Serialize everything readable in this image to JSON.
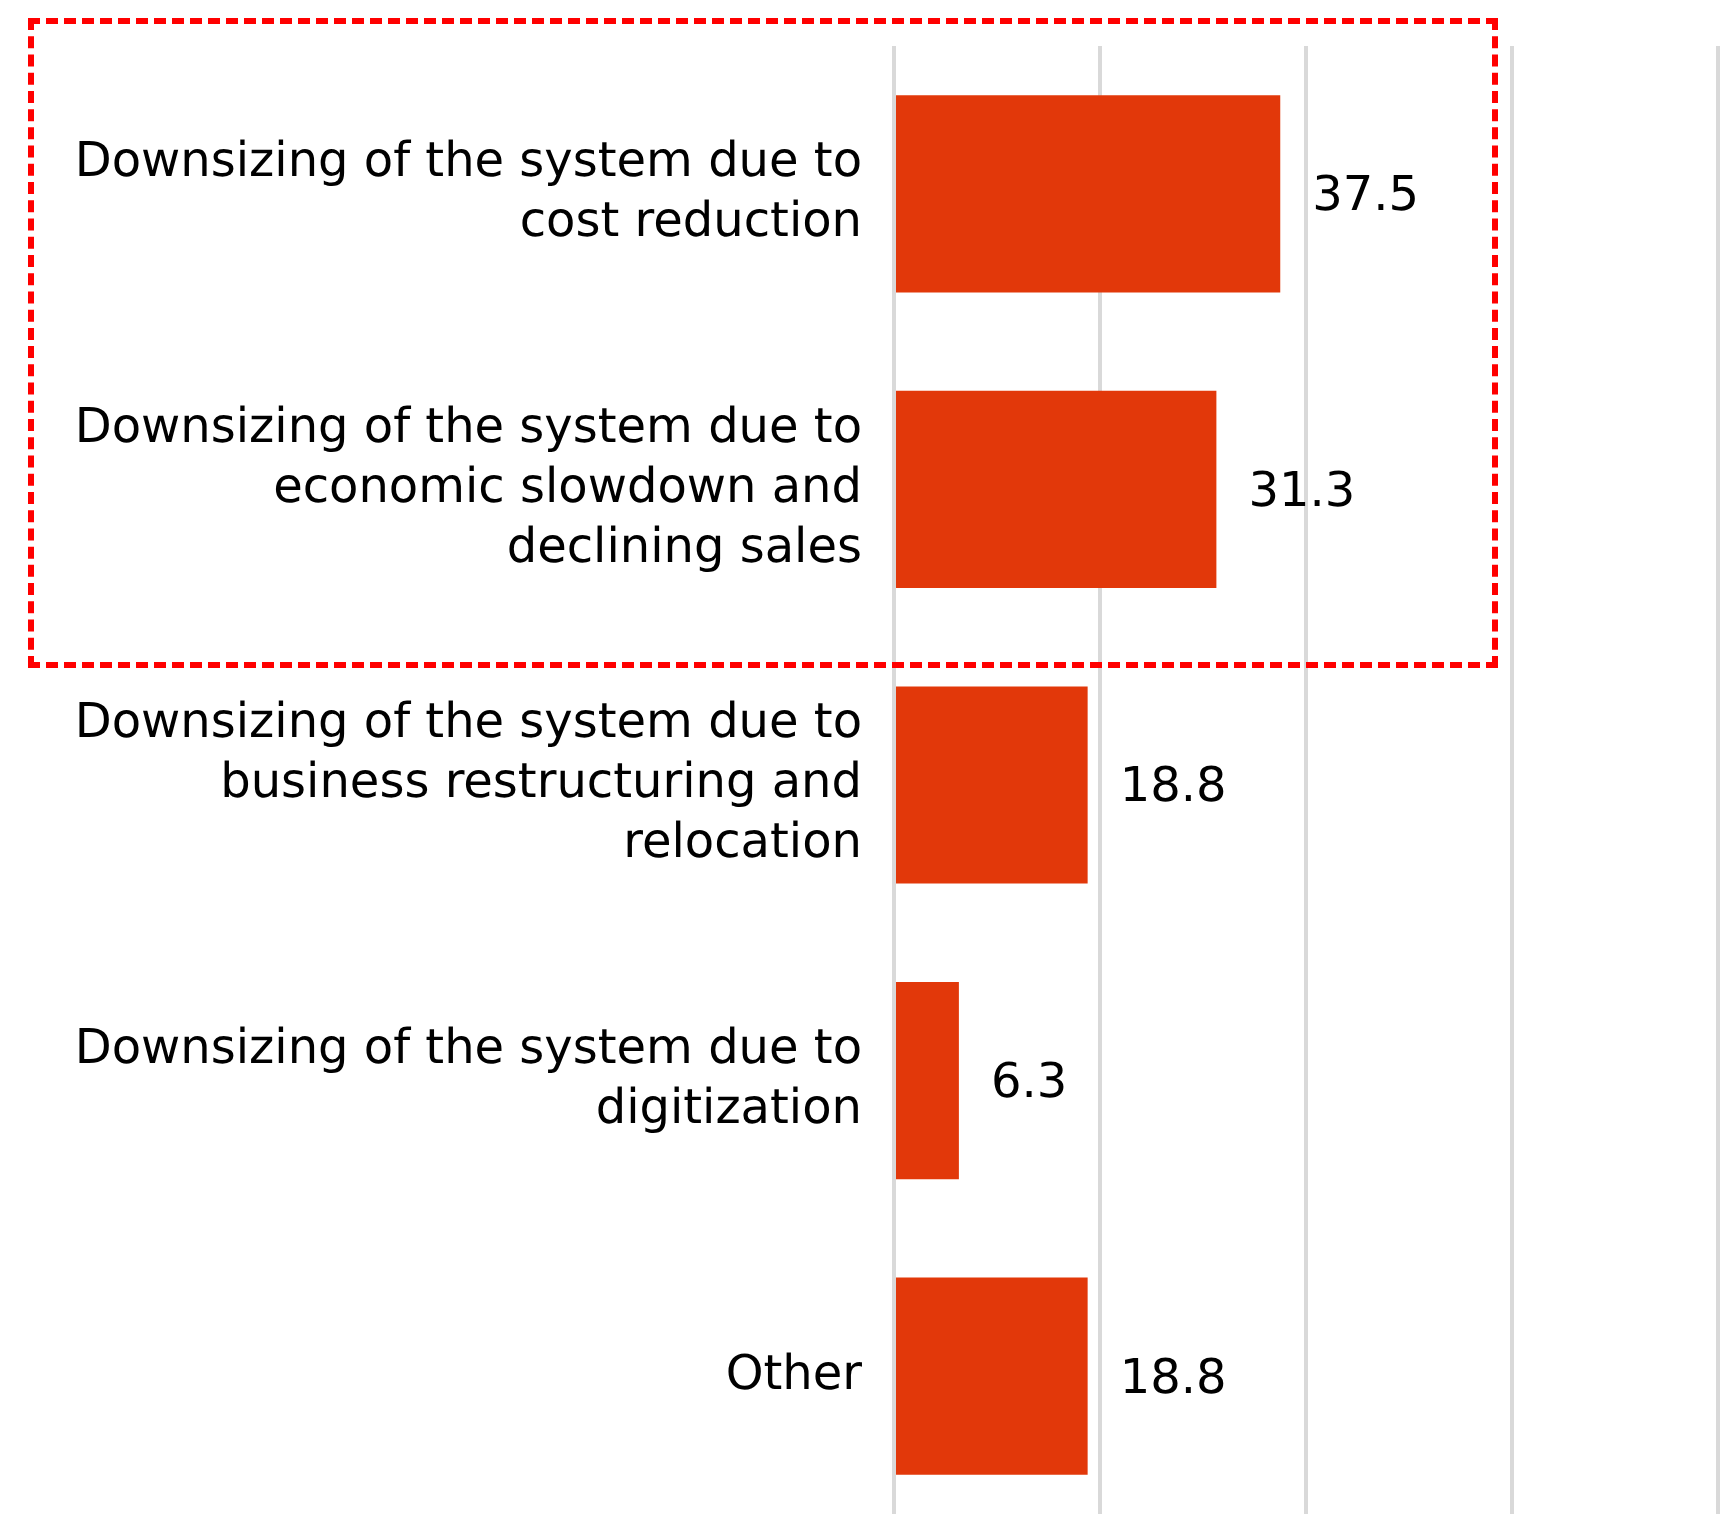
{
  "chart_data": {
    "type": "bar",
    "orientation": "horizontal",
    "categories": [
      "Downsizing of the system due to cost reduction",
      "Downsizing of the system due to economic slowdown and declining sales",
      "Downsizing of the system due to business restructuring and relocation",
      "Downsizing of the system due to digitization",
      "Other"
    ],
    "values": [
      37.5,
      31.3,
      18.8,
      6.3,
      18.8
    ],
    "color": "#e2380a",
    "xlim": [
      0,
      80
    ],
    "xticks": [
      {
        "value": 0,
        "label": null
      },
      {
        "value": 20,
        "label": null
      },
      {
        "value": 40,
        "label": null
      },
      {
        "value": 60,
        "label": null
      },
      {
        "value": 80,
        "label": null
      }
    ],
    "grid": "x",
    "tick_labels": "y",
    "data_labels": true
  }
}
